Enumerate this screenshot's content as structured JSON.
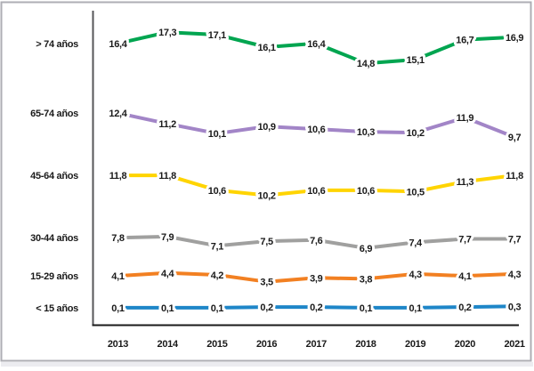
{
  "frame": {
    "background": "#ffffff",
    "border_color": "#aeaeb4",
    "bottom_strip_color": "#ececf0"
  },
  "chart_data": {
    "type": "line",
    "title": "",
    "xlabel": "",
    "ylabel": "",
    "grid": false,
    "legend_position": "left-category-labels",
    "decimal_separator": ",",
    "axis_color": "#1a1a1a",
    "x": [
      "2013",
      "2014",
      "2015",
      "2016",
      "2017",
      "2018",
      "2019",
      "2020",
      "2021"
    ],
    "series": [
      {
        "name": "> 74 años",
        "color": "#00a550",
        "values": [
          16.4,
          17.3,
          17.1,
          16.1,
          16.4,
          14.8,
          15.1,
          16.7,
          16.9
        ],
        "labels": [
          "16,4",
          "17,3",
          "17,1",
          "16,1",
          "16,4",
          "14,8",
          "15,1",
          "16,7",
          "16,9"
        ]
      },
      {
        "name": "65-74 años",
        "color": "#a285c7",
        "values": [
          12.4,
          11.2,
          10.1,
          10.9,
          10.6,
          10.3,
          10.2,
          11.9,
          9.7
        ],
        "labels": [
          "12,4",
          "11,2",
          "10,1",
          "10,9",
          "10,6",
          "10,3",
          "10,2",
          "11,9",
          "9,7"
        ]
      },
      {
        "name": "45-64 años",
        "color": "#ffd400",
        "values": [
          11.8,
          11.8,
          10.6,
          10.2,
          10.6,
          10.6,
          10.5,
          11.3,
          11.8
        ],
        "labels": [
          "11,8",
          "11,8",
          "10,6",
          "10,2",
          "10,6",
          "10,6",
          "10,5",
          "11,3",
          "11,8"
        ]
      },
      {
        "name": "30-44 años",
        "color": "#a0a09f",
        "values": [
          7.8,
          7.9,
          7.1,
          7.5,
          7.6,
          6.9,
          7.4,
          7.7,
          7.7
        ],
        "labels": [
          "7,8",
          "7,9",
          "7,1",
          "7,5",
          "7,6",
          "6,9",
          "7,4",
          "7,7",
          "7,7"
        ]
      },
      {
        "name": "15-29 años",
        "color": "#f28022",
        "values": [
          4.1,
          4.4,
          4.2,
          3.5,
          3.9,
          3.8,
          4.3,
          4.1,
          4.3
        ],
        "labels": [
          "4,1",
          "4,4",
          "4,2",
          "3,5",
          "3,9",
          "3,8",
          "4,3",
          "4,1",
          "4,3"
        ]
      },
      {
        "name": "< 15 años",
        "color": "#1e86c8",
        "values": [
          0.1,
          0.1,
          0.1,
          0.2,
          0.2,
          0.1,
          0.1,
          0.2,
          0.3
        ],
        "labels": [
          "0,1",
          "0,1",
          "0,1",
          "0,2",
          "0,2",
          "0,1",
          "0,1",
          "0,2",
          "0,3"
        ]
      }
    ]
  }
}
